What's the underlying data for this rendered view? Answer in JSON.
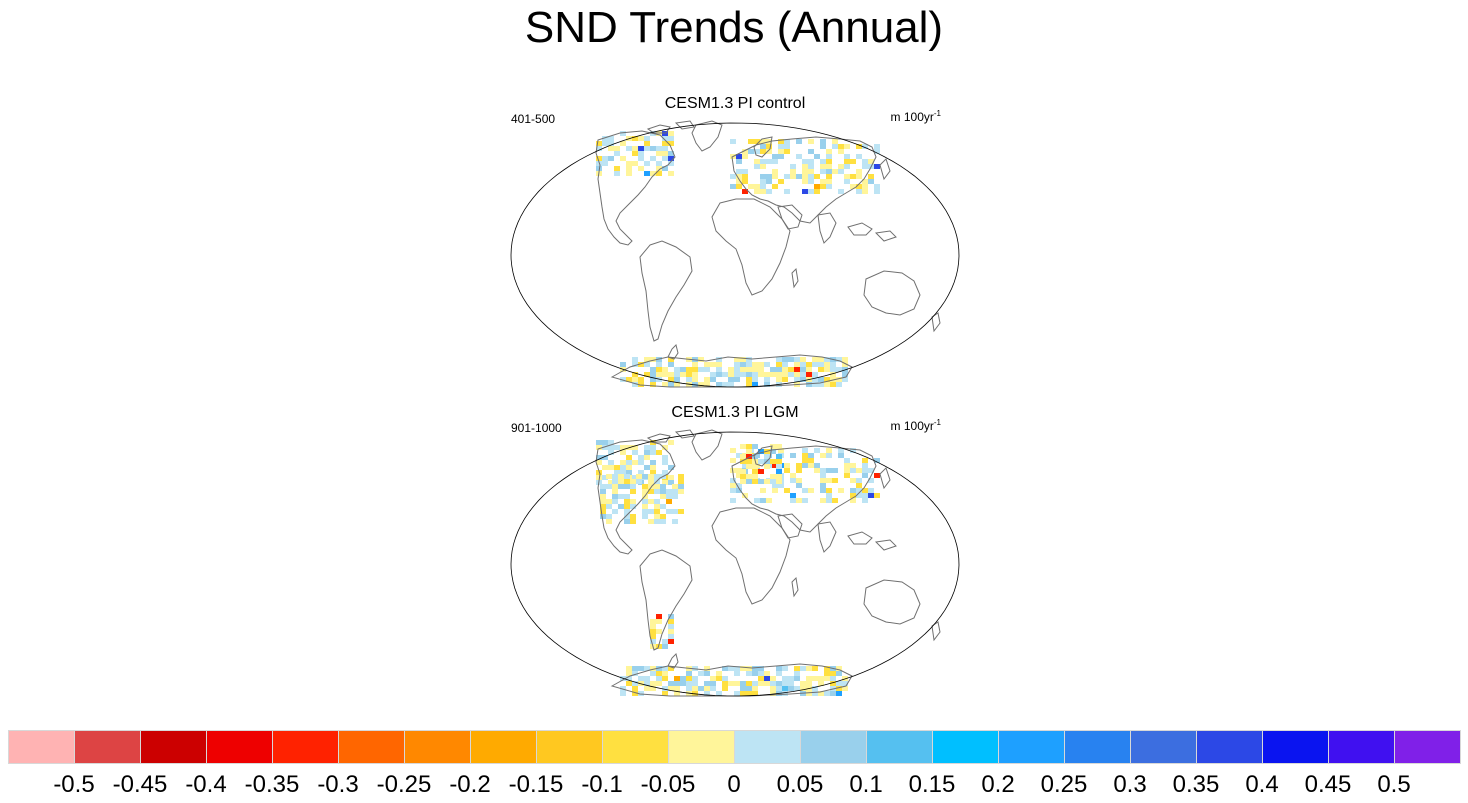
{
  "figure": {
    "title": "SND Trends (Annual)"
  },
  "panels": [
    {
      "title": "CESM1.3 PI control",
      "period": "401-500",
      "units": "m 100yr",
      "units_exp": "-1"
    },
    {
      "title": "CESM1.3 PI LGM",
      "period": "901-1000",
      "units": "m 100yr",
      "units_exp": "-1"
    }
  ],
  "colorbar": {
    "labels": [
      "-0.5",
      "-0.45",
      "-0.4",
      "-0.35",
      "-0.3",
      "-0.25",
      "-0.2",
      "-0.15",
      "-0.1",
      "-0.05",
      "0",
      "0.05",
      "0.1",
      "0.15",
      "0.2",
      "0.25",
      "0.3",
      "0.35",
      "0.4",
      "0.45",
      "0.5"
    ],
    "colors": [
      "#ffb3b3",
      "#dd4444",
      "#cc0000",
      "#ee0000",
      "#ff2200",
      "#ff6600",
      "#ff8800",
      "#ffaa00",
      "#ffc820",
      "#ffe040",
      "#fff59a",
      "#bde4f4",
      "#99d0ec",
      "#55c0f0",
      "#00bfff",
      "#1ea0ff",
      "#2882f0",
      "#3c6ee0",
      "#2c48e6",
      "#0a14f0",
      "#4010f0",
      "#8020e8"
    ]
  },
  "map_colors": {
    "land_outline": "#707070",
    "frame": "#000000",
    "ocean": "#ffffff"
  }
}
